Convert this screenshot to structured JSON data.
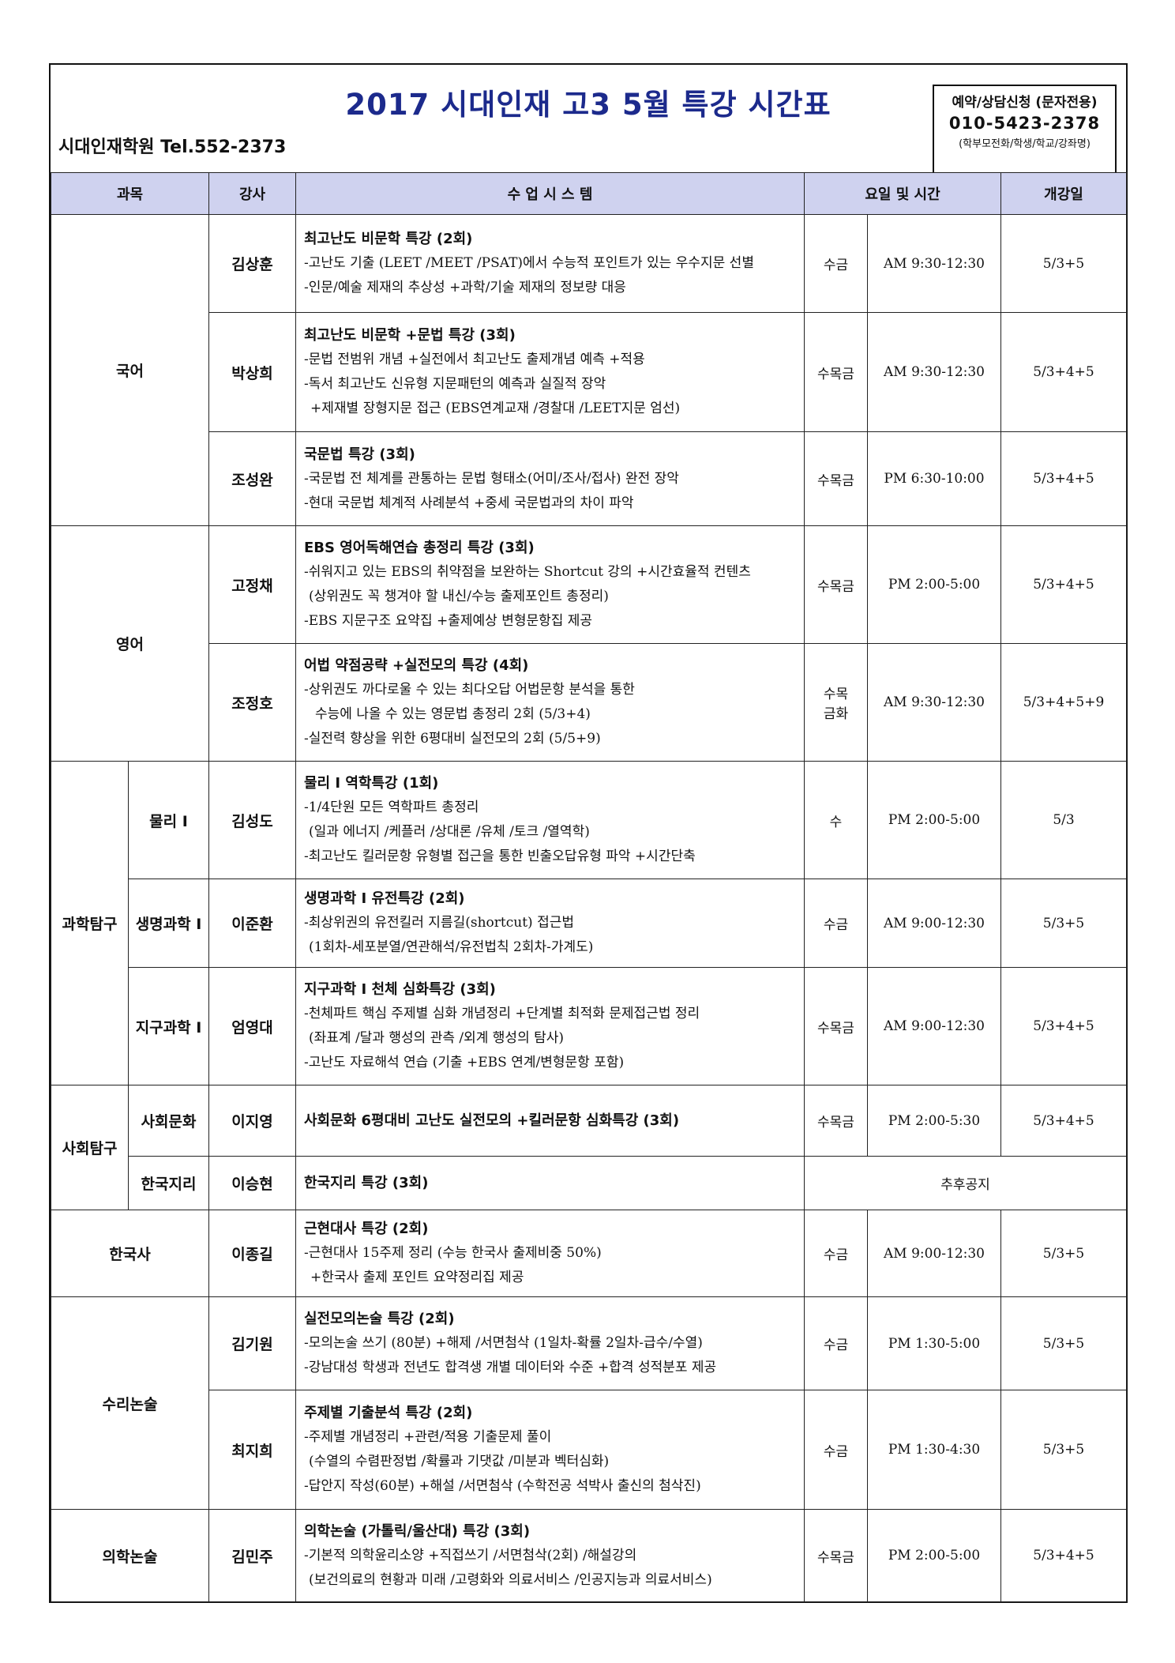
{
  "header": {
    "title": "2017 시대인재 고3 5월 특강 시간표",
    "academy": "시대인재학원 Tel.552-2373",
    "contact": {
      "line1": "예약/상담신청 (문자전용)",
      "phone": "010-5423-2378",
      "line3": "(학부모전화/학생/학교/강좌명)"
    }
  },
  "columns": {
    "subject": "과목",
    "teacher": "강사",
    "system": "수 업 시 스 템",
    "schedule": "요일 및 시간",
    "open": "개강일"
  },
  "subjects": {
    "korean": "국어",
    "english": "영어",
    "science": "과학탐구",
    "physics": "물리 I",
    "biology": "생명과학 I",
    "earth": "지구과학 I",
    "social": "사회탐구",
    "society": "사회문화",
    "geography": "한국지리",
    "history": "한국사",
    "math": "수리논술",
    "medical": "의학논술"
  },
  "rows": [
    {
      "teacher": "김상훈",
      "title": "최고난도 비문학 특강 (2회)",
      "lines": [
        "-고난도 기출 (LEET /MEET /PSAT)에서 수능적 포인트가 있는 우수지문 선별",
        "-인문/예술 제재의 추상성 +과학/기술 제재의 정보량 대응"
      ],
      "day": "수금",
      "time": "AM 9:30-12:30",
      "open": "5/3+5"
    },
    {
      "teacher": "박상희",
      "title": "최고난도 비문학 +문법 특강 (3회)",
      "lines": [
        "-문법 전범위 개념 +실전에서 최고난도 출제개념 예측 +적용",
        "-독서 최고난도 신유형 지문패턴의 예측과 실질적 장악",
        "+제재별 장형지문 접근 (EBS연계교재 /경찰대 /LEET지문 엄선)"
      ],
      "day": "수목금",
      "time": "AM 9:30-12:30",
      "open": "5/3+4+5"
    },
    {
      "teacher": "조성완",
      "title": "국문법 특강 (3회)",
      "lines": [
        "-국문법 전 체계를 관통하는 문법 형태소(어미/조사/접사) 완전 장악",
        "-현대 국문법 체계적 사례분석 +중세 국문법과의 차이 파악"
      ],
      "day": "수목금",
      "time": "PM 6:30-10:00",
      "open": "5/3+4+5"
    },
    {
      "teacher": "고정채",
      "title": "EBS 영어독해연습 총정리 특강 (3회)",
      "lines": [
        "-쉬워지고 있는 EBS의 취약점을 보완하는 Shortcut 강의 +시간효율적 컨텐츠",
        "(상위권도 꼭 챙겨야 할 내신/수능 출제포인트 총정리)",
        "-EBS 지문구조 요약집 +출제예상 변형문항집 제공"
      ],
      "day": "수목금",
      "time": "PM 2:00-5:00",
      "open": "5/3+4+5"
    },
    {
      "teacher": "조정호",
      "title": "어법 약점공략 +실전모의 특강 (4회)",
      "lines": [
        "-상위권도 까다로울 수 있는 최다오답 어법문항 분석을 통한",
        "수능에 나올 수 있는 영문법 총정리 2회 (5/3+4)",
        "-실전력 향상을 위한 6평대비 실전모의 2회 (5/5+9)"
      ],
      "day1": "수목",
      "day2": "금화",
      "time": "AM 9:30-12:30",
      "open": "5/3+4+5+9"
    },
    {
      "teacher": "김성도",
      "title": "물리 I 역학특강 (1회)",
      "lines": [
        "-1/4단원 모든 역학파트 총정리",
        "(일과 에너지 /케플러 /상대론 /유체 /토크 /열역학)",
        "-최고난도 킬러문항 유형별 접근을 통한 빈출오답유형 파악 +시간단축"
      ],
      "day": "수",
      "time": "PM 2:00-5:00",
      "open": "5/3"
    },
    {
      "teacher": "이준환",
      "title": "생명과학 I 유전특강 (2회)",
      "lines": [
        "-최상위권의 유전킬러 지름길(shortcut) 접근법",
        "(1회차-세포분열/연관해석/유전법칙 2회차-가계도)"
      ],
      "day": "수금",
      "time": "AM 9:00-12:30",
      "open": "5/3+5"
    },
    {
      "teacher": "엄영대",
      "title": "지구과학 I 천체 심화특강 (3회)",
      "lines": [
        "-천체파트 핵심 주제별 심화 개념정리 +단계별 최적화 문제접근법 정리",
        "(좌표계 /달과 행성의 관측 /외계 행성의 탐사)",
        "-고난도 자료해석 연습 (기출 +EBS 연계/변형문항 포함)"
      ],
      "day": "수목금",
      "time": "AM 9:00-12:30",
      "open": "5/3+4+5"
    },
    {
      "teacher": "이지영",
      "title": "사회문화 6평대비 고난도 실전모의 +킬러문항 심화특강 (3회)",
      "lines": [],
      "day": "수목금",
      "time": "PM 2:00-5:30",
      "open": "5/3+4+5"
    },
    {
      "teacher": "이승현",
      "title": "한국지리 특강 (3회)",
      "lines": [],
      "note": "추후공지"
    },
    {
      "teacher": "이종길",
      "title": "근현대사 특강 (2회)",
      "lines": [
        "-근현대사 15주제 정리 (수능 한국사 출제비중 50%)",
        "+한국사 출제 포인트 요약정리집 제공"
      ],
      "day": "수금",
      "time": "AM 9:00-12:30",
      "open": "5/3+5"
    },
    {
      "teacher": "김기원",
      "title": "실전모의논술 특강 (2회)",
      "lines": [
        "-모의논술 쓰기 (80분) +해제 /서면첨삭 (1일차-확률 2일차-급수/수열)",
        "-강남대성 학생과 전년도 합격생 개별 데이터와 수준 +합격 성적분포 제공"
      ],
      "day": "수금",
      "time": "PM 1:30-5:00",
      "open": "5/3+5"
    },
    {
      "teacher": "최지희",
      "title": "주제별 기출분석 특강 (2회)",
      "lines": [
        "-주제별 개념정리 +관련/적용 기출문제 풀이",
        "(수열의 수렴판정법 /확률과 기댓값 /미분과 벡터심화)",
        "-답안지 작성(60분) +해설 /서면첨삭 (수학전공 석박사 출신의 첨삭진)"
      ],
      "day": "수금",
      "time": "PM 1:30-4:30",
      "open": "5/3+5"
    },
    {
      "teacher": "김민주",
      "title": "의학논술 (가톨릭/울산대) 특강 (3회)",
      "lines": [
        "-기본적 의학윤리소양 +직접쓰기 /서면첨삭(2회) /해설강의",
        "(보건의료의 현황과 미래 /고령화와 의료서비스 /인공지능과 의료서비스)"
      ],
      "day": "수목금",
      "time": "PM 2:00-5:00",
      "open": "5/3+4+5"
    }
  ]
}
